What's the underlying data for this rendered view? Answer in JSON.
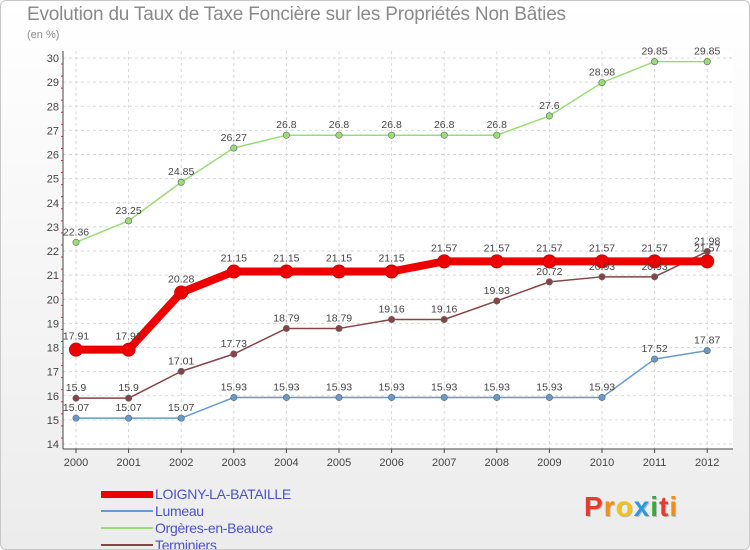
{
  "title": "Evolution du Taux de Taxe Foncière sur les Propriétés Non Bâties",
  "unit_label": "(en %)",
  "logo_text": "Proxiti",
  "logo_colors": [
    "#e63b2e",
    "#f28c1b",
    "#f2c218",
    "#2a9be0",
    "#3aa83a",
    "#e63b2e",
    "#f28c1b"
  ],
  "chart_data": {
    "type": "line",
    "title": "Evolution du Taux de Taxe Foncière sur les Propriétés Non Bâties",
    "ylabel": "(en %)",
    "xlabel": "",
    "x": [
      "2000",
      "2001",
      "2002",
      "2003",
      "2004",
      "2005",
      "2006",
      "2007",
      "2008",
      "2009",
      "2010",
      "2011",
      "2012"
    ],
    "ylim": [
      14,
      30
    ],
    "yticks": [
      "14",
      "15",
      "16",
      "17",
      "18",
      "19",
      "20",
      "21",
      "22",
      "23",
      "24",
      "25",
      "26",
      "27",
      "28",
      "29",
      "30"
    ],
    "grid": true,
    "legend_position": "bottom-left",
    "series": [
      {
        "name": "LOIGNY-LA-BATAILLE",
        "color": "#ee0000",
        "emphasis": true,
        "values": [
          17.91,
          17.91,
          20.28,
          21.15,
          21.15,
          21.15,
          21.15,
          21.57,
          21.57,
          21.57,
          21.57,
          21.57,
          21.57
        ],
        "labels": [
          "17.91",
          "17.91",
          "20.28",
          "21.15",
          "21.15",
          "21.15",
          "21.15",
          "21.57",
          "21.57",
          "21.57",
          "21.57",
          "21.57",
          "21.57"
        ]
      },
      {
        "name": "Lumeau",
        "color": "#6699cc",
        "emphasis": false,
        "values": [
          15.07,
          15.07,
          15.07,
          15.93,
          15.93,
          15.93,
          15.93,
          15.93,
          15.93,
          15.93,
          15.93,
          17.52,
          17.87
        ],
        "labels": [
          "15.07",
          "15.07",
          "15.07",
          "15.93",
          "15.93",
          "15.93",
          "15.93",
          "15.93",
          "15.93",
          "15.93",
          "15.93",
          "17.52",
          "17.87"
        ]
      },
      {
        "name": "Orgères-en-Beauce",
        "color": "#99dd77",
        "emphasis": false,
        "values": [
          22.36,
          23.25,
          24.85,
          26.27,
          26.8,
          26.8,
          26.8,
          26.8,
          26.8,
          27.6,
          28.98,
          29.85,
          29.85
        ],
        "labels": [
          "22.36",
          "23.25",
          "24.85",
          "26.27",
          "26.8",
          "26.8",
          "26.8",
          "26.8",
          "26.8",
          "27.6",
          "28.98",
          "29.85",
          "29.85"
        ]
      },
      {
        "name": "Terminiers",
        "color": "#884444",
        "emphasis": false,
        "values": [
          15.9,
          15.9,
          17.01,
          17.73,
          18.79,
          18.79,
          19.16,
          19.16,
          19.93,
          20.72,
          20.93,
          20.93,
          21.98
        ],
        "labels": [
          "15.9",
          "15.9",
          "17.01",
          "17.73",
          "18.79",
          "18.79",
          "19.16",
          "19.16",
          "19.93",
          "20.72",
          "20.93",
          "20.93",
          "21.98"
        ]
      }
    ]
  }
}
